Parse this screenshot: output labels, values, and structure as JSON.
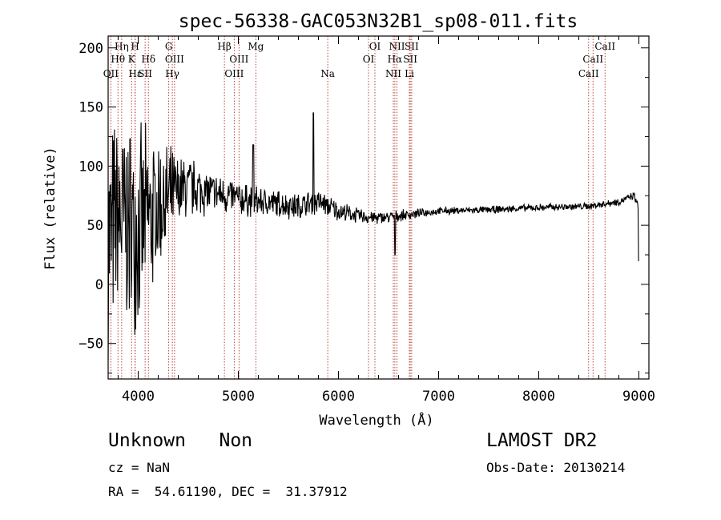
{
  "chart_data": {
    "type": "line",
    "title": "spec-56338-GAC053N32B1_sp08-011.fits",
    "xlabel": "Wavelength (Å)",
    "ylabel": "Flux (relative)",
    "xlim": [
      3700,
      9100
    ],
    "ylim": [
      -80,
      210
    ],
    "x_ticks": [
      4000,
      5000,
      6000,
      7000,
      8000,
      9000
    ],
    "x_tick_labels": [
      "4000",
      "5000",
      "6000",
      "7000",
      "8000",
      "9000"
    ],
    "y_ticks": [
      -50,
      0,
      50,
      100,
      150,
      200
    ],
    "y_tick_labels": [
      "−50",
      "0",
      "50",
      "100",
      "150",
      "200"
    ],
    "grid": false,
    "series": [
      {
        "name": "spectrum",
        "anchors": [
          [
            3700,
            40
          ],
          [
            3750,
            45
          ],
          [
            3800,
            55
          ],
          [
            3900,
            50
          ],
          [
            4000,
            48
          ],
          [
            4100,
            55
          ],
          [
            4200,
            65
          ],
          [
            4300,
            72
          ],
          [
            4400,
            78
          ],
          [
            4500,
            82
          ],
          [
            4600,
            80
          ],
          [
            4700,
            78
          ],
          [
            4800,
            76
          ],
          [
            4900,
            75
          ],
          [
            5000,
            72
          ],
          [
            5200,
            70
          ],
          [
            5400,
            68
          ],
          [
            5600,
            66
          ],
          [
            5800,
            70
          ],
          [
            6000,
            62
          ],
          [
            6200,
            58
          ],
          [
            6400,
            56
          ],
          [
            6600,
            58
          ],
          [
            6800,
            60
          ],
          [
            7000,
            62
          ],
          [
            7500,
            63
          ],
          [
            8000,
            65
          ],
          [
            8500,
            66
          ],
          [
            8800,
            70
          ],
          [
            8950,
            75
          ],
          [
            9000,
            65
          ]
        ],
        "noise_envelope": [
          [
            3700,
            90
          ],
          [
            3900,
            85
          ],
          [
            4100,
            70
          ],
          [
            4250,
            50
          ],
          [
            4400,
            30
          ],
          [
            4700,
            18
          ],
          [
            5200,
            12
          ],
          [
            5800,
            10
          ],
          [
            6200,
            6
          ],
          [
            6700,
            4
          ],
          [
            7000,
            3
          ],
          [
            9000,
            3
          ]
        ],
        "features": [
          {
            "x": 6565,
            "y": 25
          },
          {
            "x": 5750,
            "y": 145
          },
          {
            "x": 5150,
            "y": 118
          },
          {
            "x": 9000,
            "y": 20
          }
        ]
      }
    ],
    "line_markers": [
      {
        "name": "OII",
        "x": 3727,
        "row": 3
      },
      {
        "name": "Hη",
        "x": 3835,
        "row": 1
      },
      {
        "name": "Hθ",
        "x": 3798,
        "row": 2
      },
      {
        "name": "K",
        "x": 3934,
        "row": 2
      },
      {
        "name": "H",
        "x": 3969,
        "row": 1
      },
      {
        "name": "Hε",
        "x": 3970,
        "row": 3
      },
      {
        "name": "Hδ",
        "x": 4102,
        "row": 2
      },
      {
        "name": "SII",
        "x": 4069,
        "row": 3
      },
      {
        "name": "G",
        "x": 4305,
        "row": 1
      },
      {
        "name": "OIII",
        "x": 4363,
        "row": 2
      },
      {
        "name": "Hγ",
        "x": 4341,
        "row": 3
      },
      {
        "name": "Hβ",
        "x": 4861,
        "row": 1
      },
      {
        "name": "OIII",
        "x": 5007,
        "row": 2
      },
      {
        "name": "OIII",
        "x": 4959,
        "row": 3
      },
      {
        "name": "Mg",
        "x": 5175,
        "row": 1
      },
      {
        "name": "Na",
        "x": 5893,
        "row": 3
      },
      {
        "name": "OI",
        "x": 6364,
        "row": 1
      },
      {
        "name": "OI",
        "x": 6300,
        "row": 2
      },
      {
        "name": "NII",
        "x": 6584,
        "row": 1
      },
      {
        "name": "Hα",
        "x": 6563,
        "row": 2
      },
      {
        "name": "NII",
        "x": 6548,
        "row": 3
      },
      {
        "name": "SII",
        "x": 6731,
        "row": 1
      },
      {
        "name": "SII",
        "x": 6717,
        "row": 2
      },
      {
        "name": "Li",
        "x": 6708,
        "row": 3
      },
      {
        "name": "CaII",
        "x": 8662,
        "row": 1
      },
      {
        "name": "CaII",
        "x": 8542,
        "row": 2
      },
      {
        "name": "CaII",
        "x": 8498,
        "row": 3
      }
    ]
  },
  "info": {
    "classification": "Unknown   Non",
    "survey": "LAMOST DR2",
    "redshift": "cz = NaN",
    "obs_date": "Obs-Date: 20130214",
    "coords": "RA =  54.61190, DEC =  31.37912"
  },
  "colors": {
    "line_marker": "#b0302a",
    "spectrum": "#000000",
    "axes": "#000000"
  }
}
